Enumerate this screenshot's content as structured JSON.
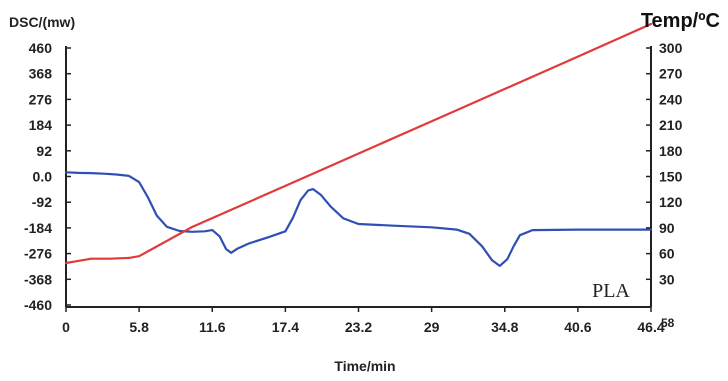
{
  "chart_data": {
    "type": "line",
    "xlabel": "Time/min",
    "ylabel_left": "DSC/(mw)",
    "ylabel_right": "Temp/ºC",
    "annotation": "PLA",
    "x_ticks": [
      "0",
      "5.8",
      "11.6",
      "17.4",
      "23.2",
      "29",
      "34.8",
      "40.6",
      "46.4"
    ],
    "x_extra_tick": "58",
    "y_left_ticks": [
      "460",
      "368",
      "276",
      "184",
      "92",
      "0.0",
      "-92",
      "-184",
      "-276",
      "-368",
      "-460"
    ],
    "y_right_ticks": [
      "300",
      "270",
      "240",
      "210",
      "180",
      "150",
      "120",
      "90",
      "60",
      "30"
    ],
    "xlim": [
      0,
      46.4
    ],
    "ylim_left": [
      -460,
      460
    ],
    "ylim_right": [
      0,
      300
    ],
    "grid": false,
    "series": [
      {
        "axis": "left",
        "color": "#2f4fb4",
        "x": [
          0,
          1,
          2,
          3,
          4,
          5,
          5.8,
          6.5,
          7.2,
          8,
          9,
          10,
          11,
          11.6,
          12.2,
          12.7,
          13.1,
          13.6,
          14.5,
          16,
          17.4,
          18,
          18.6,
          19.2,
          19.6,
          20.2,
          21,
          22,
          23.2,
          26,
          29,
          31,
          32,
          33,
          33.8,
          34.4,
          35,
          35.5,
          36,
          37,
          40.6,
          43,
          46.4
        ],
        "y": [
          15,
          13,
          12,
          10,
          7,
          2,
          -20,
          -75,
          -140,
          -180,
          -195,
          -198,
          -196,
          -192,
          -215,
          -260,
          -273,
          -258,
          -240,
          -218,
          -196,
          -148,
          -85,
          -50,
          -45,
          -65,
          -108,
          -150,
          -170,
          -176,
          -182,
          -190,
          -205,
          -250,
          -300,
          -320,
          -296,
          -250,
          -210,
          -192,
          -190,
          -190,
          -190
        ]
      },
      {
        "axis": "right",
        "color": "#e03a3a",
        "x": [
          0,
          0.8,
          2,
          3.5,
          5,
          5.8,
          10,
          20,
          30,
          40,
          46.4
        ],
        "y": [
          49,
          51,
          54,
          54,
          55,
          57,
          91,
          156,
          221,
          286,
          328
        ]
      }
    ]
  }
}
